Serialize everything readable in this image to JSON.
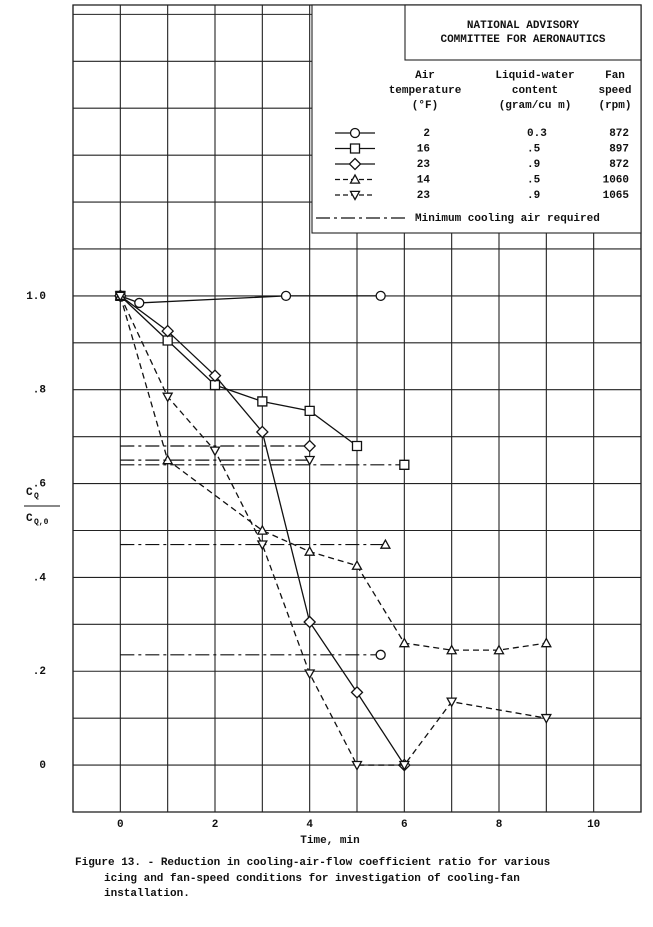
{
  "chart_data": {
    "type": "line",
    "xlabel": "Time, min",
    "ylabel": {
      "numerator": [
        "C",
        "Q"
      ],
      "denominator": [
        "C",
        "Q,0"
      ]
    },
    "xlim": [
      -1,
      11
    ],
    "ylim": [
      -0.1,
      1.62
    ],
    "xticks": [
      0,
      2,
      4,
      6,
      8,
      10
    ],
    "yticks": [
      0,
      {
        "value": 0.2,
        "label": ".2"
      },
      {
        "value": 0.4,
        "label": ".4"
      },
      {
        "value": 0.6,
        "label": ".6"
      },
      {
        "value": 0.8,
        "label": ".8"
      },
      {
        "value": 1,
        "label": "1.0"
      }
    ],
    "xgrid": [
      -1,
      0,
      1,
      2,
      3,
      4,
      5,
      6,
      7,
      8,
      9,
      10,
      11
    ],
    "ygrid": [
      -0.1,
      0,
      0.1,
      0.2,
      0.3,
      0.4,
      0.5,
      0.6,
      0.7,
      0.8,
      0.9,
      1.0,
      1.1,
      1.2,
      1.3,
      1.4,
      1.5,
      1.6
    ],
    "color": "#111111",
    "legend_header": [
      "NATIONAL ADVISORY",
      "COMMITTEE FOR AERONAUTICS"
    ],
    "legend_columns": [
      [
        "Air",
        "temperature",
        "(°F)"
      ],
      [
        "Liquid-water",
        "content",
        "(gram/cu m)"
      ],
      [
        "Fan",
        "speed",
        "(rpm)"
      ]
    ],
    "minimum_label": "Minimum cooling air required",
    "series": [
      {
        "temperature": "2",
        "water": "0.3",
        "fan": "872",
        "marker": "circle",
        "dashed": false,
        "x": [
          0,
          0.4,
          3.5,
          5.5
        ],
        "values": [
          1.0,
          0.985,
          1.0,
          1.0
        ],
        "minimum": 0.235,
        "minimum_end": 5.5
      },
      {
        "temperature": "16",
        "water": ".5",
        "fan": "897",
        "marker": "square",
        "dashed": false,
        "x": [
          0,
          1,
          2,
          3,
          4,
          5
        ],
        "values": [
          1.0,
          0.905,
          0.81,
          0.775,
          0.755,
          0.68
        ],
        "minimum": 0.64,
        "minimum_end": 6
      },
      {
        "temperature": "23",
        "water": ".9",
        "fan": "872",
        "marker": "diamond",
        "dashed": false,
        "x": [
          0,
          1,
          2,
          3,
          4,
          5,
          6
        ],
        "values": [
          1.0,
          0.925,
          0.83,
          0.71,
          0.305,
          0.155,
          0.0
        ],
        "minimum": 0.68,
        "minimum_end": 4
      },
      {
        "temperature": "14",
        "water": ".5",
        "fan": "1060",
        "marker": "triangle",
        "dashed": true,
        "x": [
          0,
          1,
          3,
          4,
          5,
          6,
          7,
          8,
          9
        ],
        "values": [
          1.0,
          0.65,
          0.5,
          0.455,
          0.425,
          0.26,
          0.245,
          0.245,
          0.26
        ],
        "minimum": 0.47,
        "minimum_end": 5.6
      },
      {
        "temperature": "23",
        "water": ".9",
        "fan": "1065",
        "marker": "triangle-down",
        "dashed": true,
        "x": [
          0,
          1,
          2,
          3,
          4,
          5,
          6,
          7,
          9
        ],
        "values": [
          1.0,
          0.785,
          0.67,
          0.47,
          0.195,
          0.0,
          0.0,
          0.135,
          0.1
        ],
        "minimum": 0.65,
        "minimum_end": 4
      }
    ],
    "caption": [
      "Figure 13. - Reduction in cooling-air-flow coefficient ratio for various",
      "icing and fan-speed conditions for investigation of cooling-fan",
      "installation."
    ]
  }
}
